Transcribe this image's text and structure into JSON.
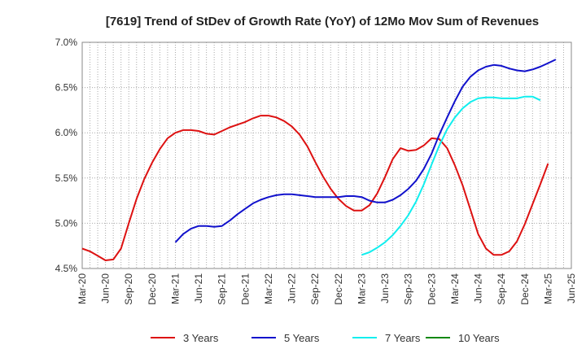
{
  "chart_data": {
    "type": "line",
    "title": "[7619]  Trend of StDev of Growth Rate (YoY) of 12Mo Mov Sum of Revenues",
    "xlabel": "",
    "ylabel": "",
    "ylim": [
      4.5,
      7.0
    ],
    "y_ticks": [
      4.5,
      5.0,
      5.5,
      6.0,
      6.5,
      7.0
    ],
    "y_tick_labels": [
      "4.5%",
      "5.0%",
      "5.5%",
      "6.0%",
      "6.5%",
      "7.0%"
    ],
    "x_tick_labels": [
      "Mar-20",
      "Jun-20",
      "Sep-20",
      "Dec-20",
      "Mar-21",
      "Jun-21",
      "Sep-21",
      "Dec-21",
      "Mar-22",
      "Jun-22",
      "Sep-22",
      "Dec-22",
      "Mar-23",
      "Jun-23",
      "Sep-23",
      "Dec-23",
      "Mar-24",
      "Jun-24",
      "Sep-24",
      "Dec-24",
      "Mar-25",
      "Jun-25"
    ],
    "grid": true,
    "legend_position": "bottom",
    "series": [
      {
        "name": "3 Years",
        "color": "#dd1111",
        "start_month": 0,
        "values": [
          4.72,
          4.69,
          4.64,
          4.59,
          4.6,
          4.72,
          5.0,
          5.27,
          5.49,
          5.67,
          5.82,
          5.94,
          6.0,
          6.03,
          6.03,
          6.02,
          5.99,
          5.98,
          6.02,
          6.06,
          6.09,
          6.12,
          6.16,
          6.19,
          6.19,
          6.17,
          6.13,
          6.07,
          5.98,
          5.85,
          5.68,
          5.52,
          5.38,
          5.27,
          5.19,
          5.14,
          5.14,
          5.2,
          5.33,
          5.51,
          5.71,
          5.83,
          5.8,
          5.81,
          5.86,
          5.94,
          5.93,
          5.83,
          5.64,
          5.42,
          5.15,
          4.88,
          4.72,
          4.65,
          4.65,
          4.69,
          4.8,
          4.99,
          5.21,
          5.43,
          5.66
        ]
      },
      {
        "name": "5 Years",
        "color": "#1111cc",
        "start_month": 12,
        "values": [
          4.79,
          4.88,
          4.94,
          4.97,
          4.97,
          4.96,
          4.97,
          5.03,
          5.1,
          5.16,
          5.22,
          5.26,
          5.29,
          5.31,
          5.32,
          5.32,
          5.31,
          5.3,
          5.29,
          5.29,
          5.29,
          5.29,
          5.3,
          5.3,
          5.29,
          5.25,
          5.23,
          5.23,
          5.26,
          5.31,
          5.38,
          5.47,
          5.6,
          5.77,
          5.98,
          6.17,
          6.35,
          6.51,
          6.62,
          6.69,
          6.73,
          6.75,
          6.74,
          6.71,
          6.69,
          6.68,
          6.7,
          6.73,
          6.77,
          6.81
        ]
      },
      {
        "name": "7 Years",
        "color": "#11eeee",
        "start_month": 36,
        "values": [
          4.65,
          4.68,
          4.73,
          4.79,
          4.87,
          4.97,
          5.09,
          5.24,
          5.43,
          5.65,
          5.86,
          6.04,
          6.17,
          6.27,
          6.34,
          6.38,
          6.39,
          6.39,
          6.38,
          6.38,
          6.38,
          6.4,
          6.4,
          6.36
        ]
      },
      {
        "name": "10 Years",
        "color": "#118811",
        "start_month": 0,
        "values": []
      }
    ]
  }
}
